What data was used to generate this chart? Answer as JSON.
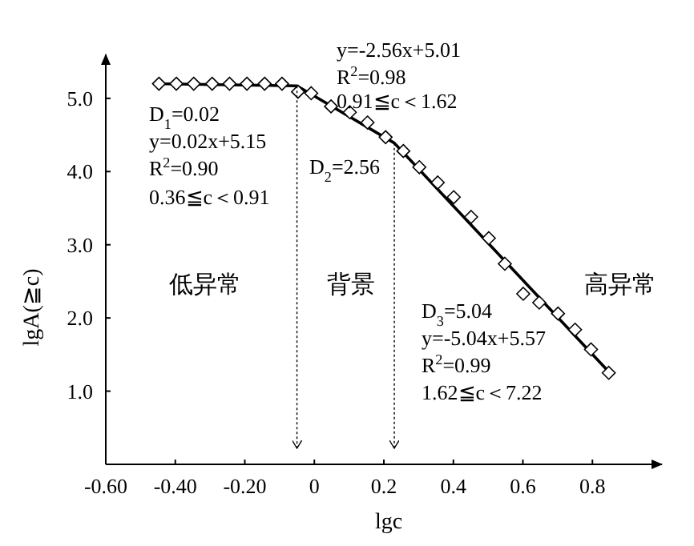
{
  "chart_data": {
    "type": "scatter",
    "xlabel": "lgc",
    "ylabel": "lgA(≧c)",
    "xlim": [
      -0.6,
      1.0
    ],
    "ylim": [
      0,
      5.6
    ],
    "xticks": [
      {
        "value": -0.6,
        "label": "-0.60"
      },
      {
        "value": -0.4,
        "label": "-0.40"
      },
      {
        "value": -0.2,
        "label": "-0.20"
      },
      0,
      0.2,
      0.4,
      0.6,
      0.8
    ],
    "yticks": [
      {
        "value": 1,
        "label": "1.0"
      },
      {
        "value": 2,
        "label": "2.0"
      },
      {
        "value": 3,
        "label": "3.0"
      },
      {
        "value": 4,
        "label": "4.0"
      },
      {
        "value": 5,
        "label": "5.0"
      }
    ],
    "grid": false,
    "series": [
      {
        "marker": "diamond",
        "color": "#000000",
        "x": [
          -0.447,
          -0.397,
          -0.347,
          -0.294,
          -0.244,
          -0.194,
          -0.143,
          -0.093,
          -0.047,
          -0.009,
          0.048,
          0.102,
          0.153,
          0.205,
          0.256,
          0.302,
          0.355,
          0.401,
          0.451,
          0.502,
          0.548,
          0.601,
          0.647,
          0.701,
          0.75,
          0.796,
          0.847
        ],
        "values": [
          5.2,
          5.2,
          5.2,
          5.2,
          5.2,
          5.2,
          5.2,
          5.2,
          5.09,
          5.07,
          4.89,
          4.81,
          4.67,
          4.47,
          4.28,
          4.06,
          3.85,
          3.65,
          3.38,
          3.09,
          2.74,
          2.33,
          2.21,
          2.06,
          1.84,
          1.57,
          1.25
        ]
      },
      {
        "type": "line",
        "color": "#000000",
        "x": [
          -0.46,
          -0.05,
          0.23,
          0.85
        ],
        "values": [
          5.2,
          5.17,
          4.39,
          1.25
        ]
      }
    ],
    "ref_lines": [
      {
        "axis": "x",
        "value": -0.05,
        "line_style": "dotted"
      },
      {
        "axis": "x",
        "value": 0.23,
        "line_style": "dotted"
      }
    ],
    "annotations": [
      "D$_{1}$=0.02",
      "y=0.02x+5.15",
      "R$^{2}$=0.90",
      "0.36≦c＜0.91",
      "y=-2.56x+5.01",
      "R$^{2}$=0.98",
      "0.91≦c＜1.62",
      "D$_{2}$=2.56",
      "D$_{3}$=5.04",
      "y=-5.04x+5.57",
      "R$^{2}$=0.99",
      "1.62≦c＜7.22",
      "低异常",
      "背景",
      "高异常"
    ]
  }
}
